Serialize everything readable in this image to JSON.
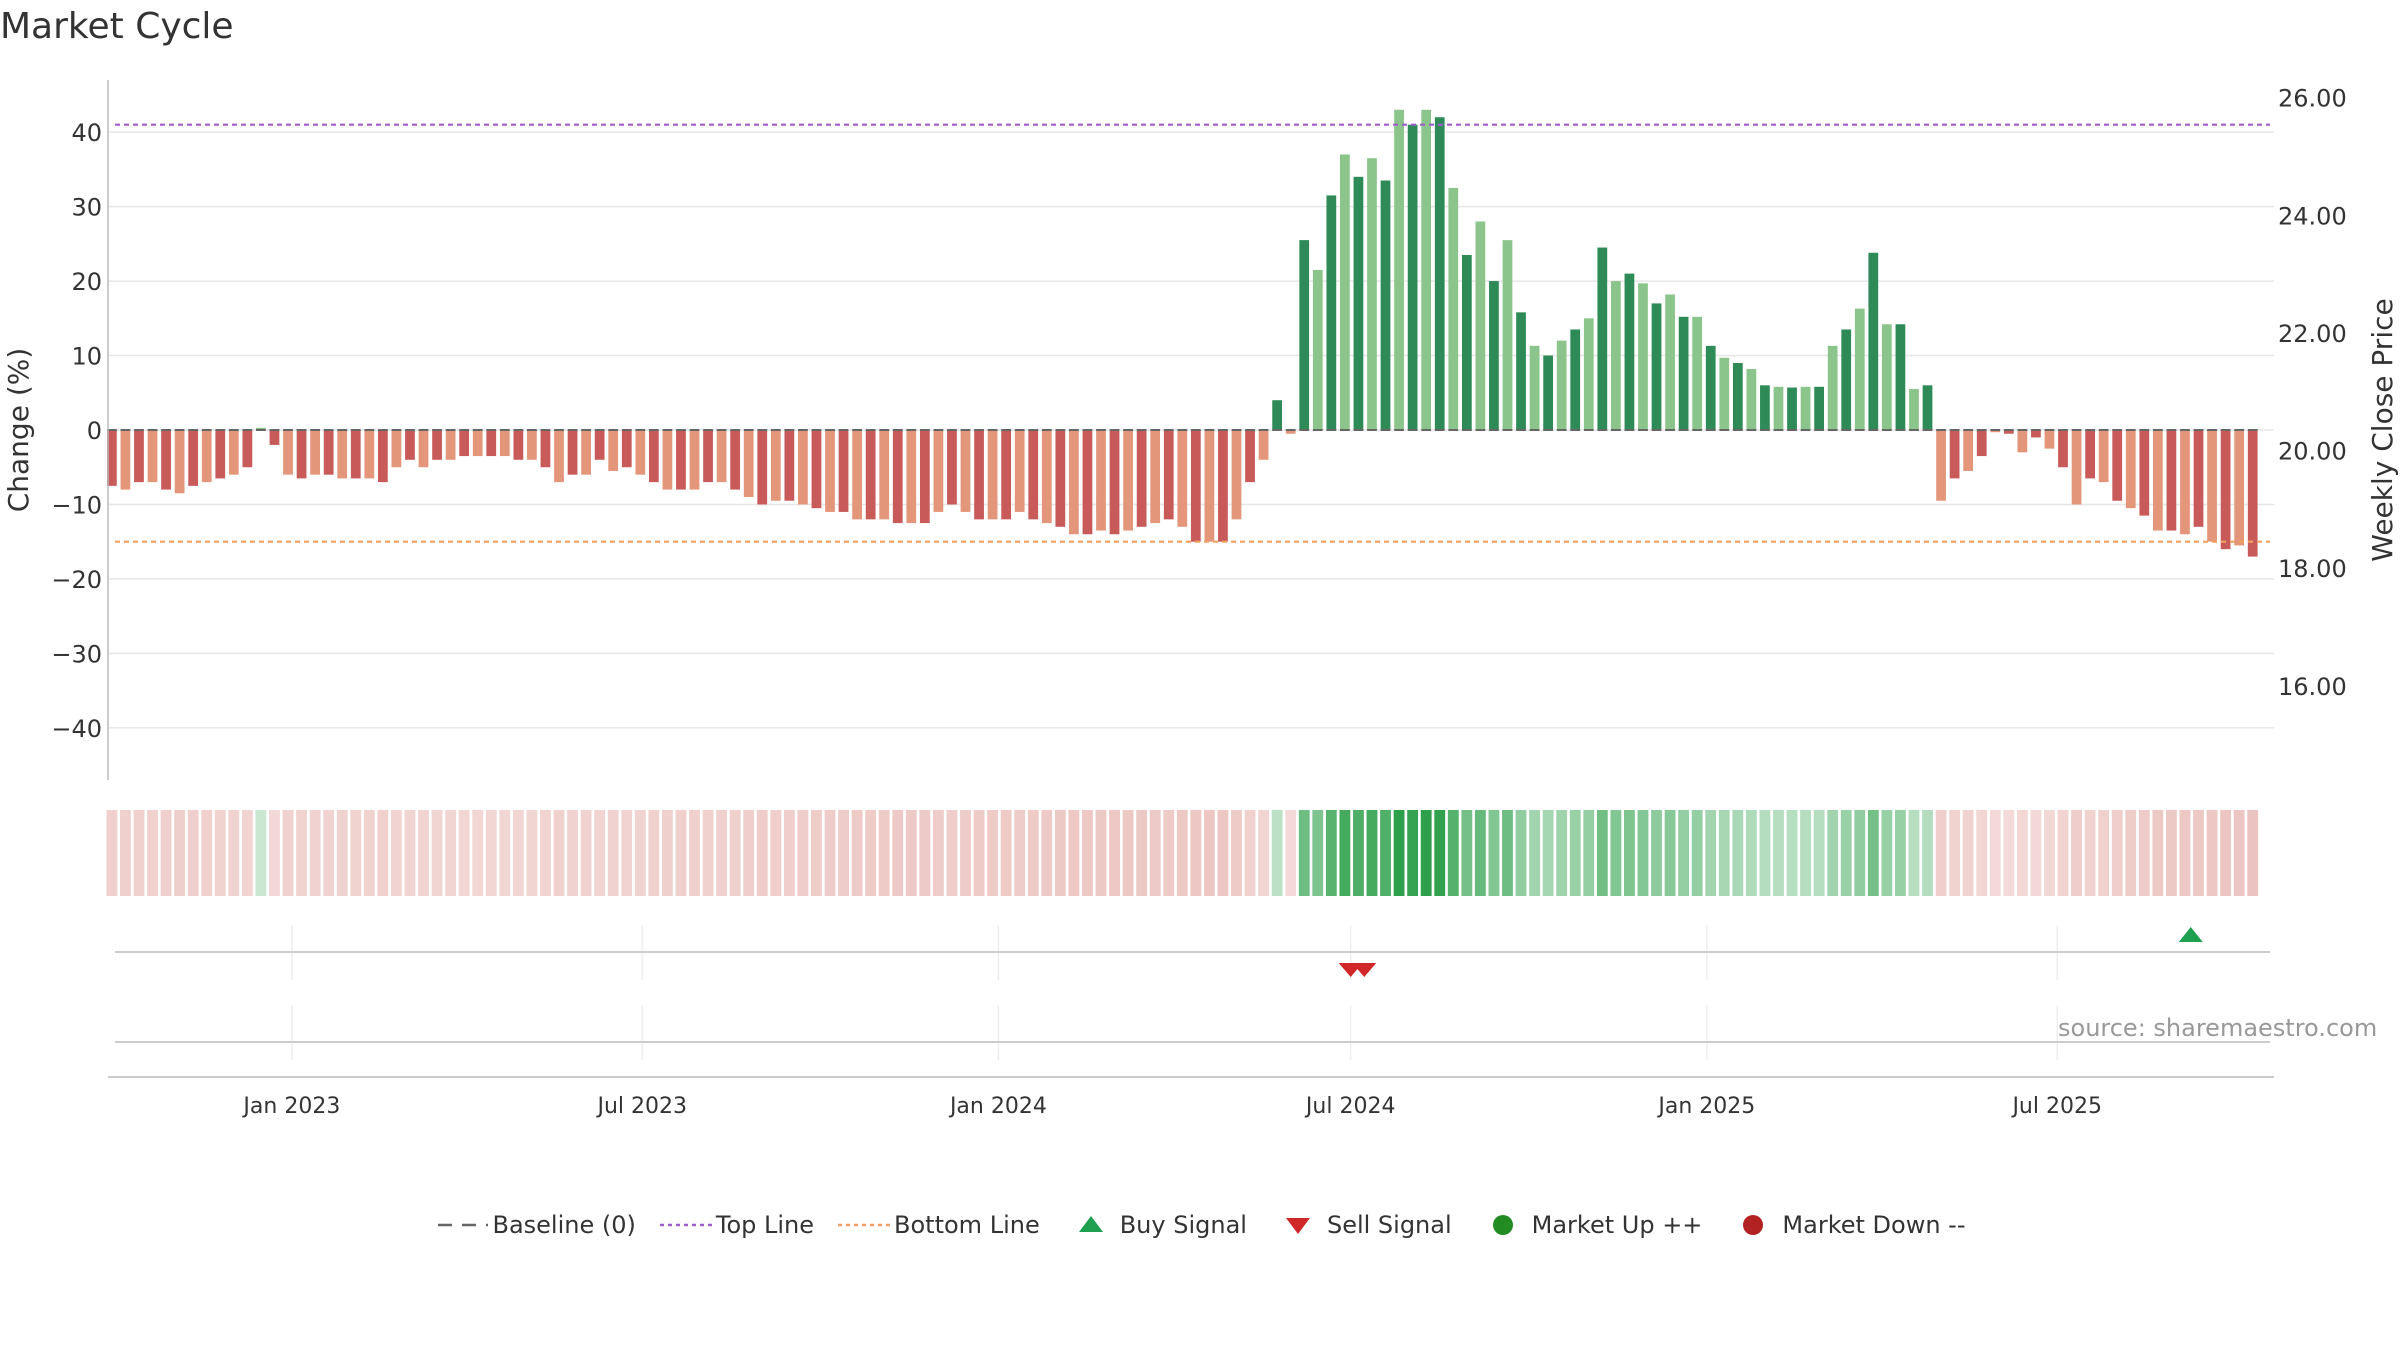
{
  "chart_data": {
    "type": "bar",
    "title": "Market Cycle",
    "ylabel": "Change (%)",
    "ylabel_right": "Weekly Close Price",
    "ylim": [
      -47,
      47
    ],
    "yticks": [
      -40,
      -30,
      -20,
      -10,
      0,
      10,
      20,
      30,
      40
    ],
    "ylim_right": [
      14.4,
      26.3
    ],
    "yticks_right": [
      "16.00",
      "18.00",
      "20.00",
      "22.00",
      "24.00",
      "26.00"
    ],
    "x_range": [
      "2022-09-28",
      "2025-10-21"
    ],
    "xticks": [
      {
        "date": "2023-01-01",
        "label": "Jan 2023"
      },
      {
        "date": "2023-07-01",
        "label": "Jul 2023"
      },
      {
        "date": "2024-01-01",
        "label": "Jan 2024"
      },
      {
        "date": "2024-07-01",
        "label": "Jul 2024"
      },
      {
        "date": "2025-01-01",
        "label": "Jan 2025"
      },
      {
        "date": "2025-07-01",
        "label": "Jul 2025"
      }
    ],
    "x_start": "2022-09-30",
    "x_step_days": 7,
    "top_line": 41,
    "bottom_line": -15,
    "grid": true,
    "legend_position": "bottom-center",
    "series": [
      {
        "name": "Change (%)",
        "values": [
          -7.5,
          -8,
          -7,
          -7,
          -8,
          -8.5,
          -7.5,
          -7,
          -6.5,
          -6,
          -5,
          0.3,
          -2,
          -6,
          -6.5,
          -6,
          -6,
          -6.5,
          -6.5,
          -6.5,
          -7,
          -5,
          -4,
          -5,
          -4,
          -4,
          -3.5,
          -3.5,
          -3.5,
          -3.5,
          -4,
          -4,
          -5,
          -7,
          -6,
          -6,
          -4,
          -5.5,
          -5,
          -6,
          -7,
          -8,
          -8,
          -8,
          -7,
          -7,
          -8,
          -9,
          -10,
          -9.5,
          -9.5,
          -10,
          -10.5,
          -11,
          -11,
          -12,
          -12,
          -12,
          -12.5,
          -12.5,
          -12.5,
          -11,
          -10,
          -11,
          -12,
          -12,
          -12,
          -11,
          -12,
          -12.5,
          -13,
          -14,
          -14,
          -13.5,
          -14,
          -13.5,
          -13,
          -12.5,
          -12,
          -13,
          -15,
          -15,
          -15,
          -12,
          -7,
          -4,
          4,
          -0.5,
          25.5,
          21.5,
          31.5,
          37,
          34,
          36.5,
          33.5,
          43,
          41,
          43,
          42,
          32.5,
          23.5,
          28,
          20,
          25.5,
          15.8,
          11.3,
          10,
          12,
          13.5,
          15,
          24.5,
          20,
          21,
          19.7,
          17,
          18.2,
          15.2,
          15.2,
          11.3,
          9.7,
          9,
          8.2,
          6,
          5.8,
          5.7,
          5.8,
          5.8,
          11.3,
          13.5,
          16.3,
          23.8,
          14.2,
          14.2,
          5.5,
          6,
          -9.5,
          -6.5,
          -5.5,
          -3.5,
          -0.3,
          -0.5,
          -3,
          -1,
          -2.5,
          -5,
          -10,
          -6.5,
          -7,
          -9.5,
          -10.5,
          -11.5,
          -13.5,
          -13.5,
          -14,
          -13,
          -15,
          -16,
          -15.5,
          -17
        ]
      },
      {
        "name": "Baseline (0)"
      },
      {
        "name": "Top Line"
      },
      {
        "name": "Bottom Line"
      },
      {
        "name": "Buy Signal",
        "dates": [
          "2025-09-08"
        ]
      },
      {
        "name": "Sell Signal",
        "dates": [
          "2024-07-01",
          "2024-07-08"
        ]
      },
      {
        "name": "Market Up ++"
      },
      {
        "name": "Market Down --"
      }
    ],
    "colors": {
      "up_strong": "#2e8b57",
      "up_light": "#8cc58c",
      "down_strong": "#c85a5a",
      "down_light": "#e3967a",
      "top_line": "#a05fc8",
      "bottom_line": "#f0a060",
      "baseline": "#666666",
      "buy": "#1fa050",
      "sell": "#d02828",
      "market_up": "#228b22",
      "market_down": "#b22222"
    }
  },
  "source": "source: sharemaestro.com"
}
